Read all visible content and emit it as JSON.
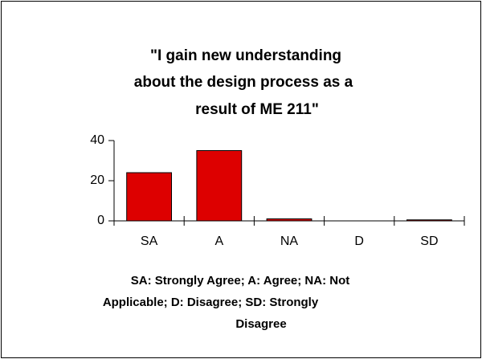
{
  "chart_data": {
    "type": "bar",
    "title": [
      "\"I gain new understanding",
      "about the design process as a",
      "result of ME 211\""
    ],
    "categories": [
      "SA",
      "A",
      "NA",
      "D",
      "SD"
    ],
    "values": [
      24,
      35,
      1,
      0,
      0.5
    ],
    "color": "#dd0000",
    "ylim": [
      0,
      40
    ],
    "yticks": [
      0,
      20,
      40
    ],
    "note": [
      "SA: Strongly Agree; A: Agree; NA: Not",
      "Applicable; D: Disagree; SD: Strongly",
      "Disagree"
    ]
  }
}
